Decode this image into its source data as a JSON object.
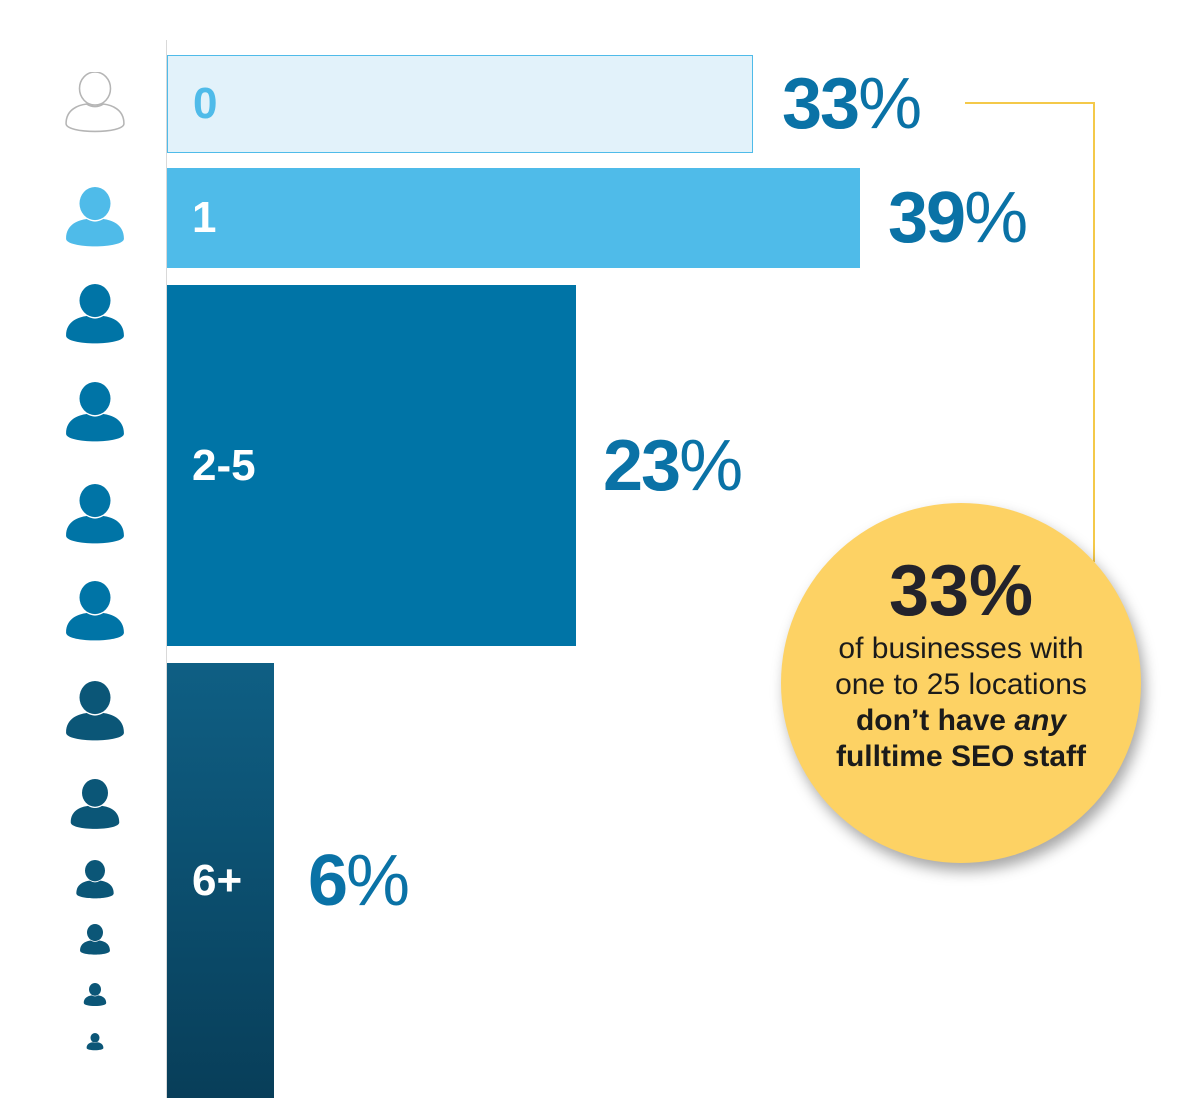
{
  "chart_data": {
    "type": "bar",
    "orientation": "horizontal",
    "categories": [
      "0",
      "1",
      "2-5",
      "6+"
    ],
    "values": [
      33,
      39,
      23,
      6
    ],
    "value_labels": [
      {
        "num": "33",
        "pct": "%"
      },
      {
        "num": "39",
        "pct": "%"
      },
      {
        "num": "23",
        "pct": "%"
      },
      {
        "num": "6",
        "pct": "%"
      }
    ],
    "unit": "%",
    "colors": [
      "#e2f2fa",
      "#4fbbe9",
      "#0074a6",
      "#0b4e6e"
    ],
    "category_label_colors": [
      "#4fbbe9",
      "#ffffff",
      "#ffffff",
      "#ffffff"
    ],
    "value_label_color": "#0a72a6",
    "grid": false,
    "legend": "none"
  },
  "icons": {
    "name": "person-icon",
    "colors": [
      "outline",
      "#4fbbe9",
      "#0074a6",
      "#0074a6",
      "#0074a6",
      "#0074a6",
      "#0b5677",
      "#0b5677",
      "#0b5677",
      "#0b5677",
      "#0b5677",
      "#0b5677"
    ]
  },
  "callout": {
    "stat": "33%",
    "line1": "of businesses with",
    "line2": "one to 25 locations",
    "line3_bold": "don’t have ",
    "line3_italic": "any",
    "line4_bold": "fulltime SEO staff",
    "color": "#fdd264",
    "connector_color": "#f4c94a"
  }
}
